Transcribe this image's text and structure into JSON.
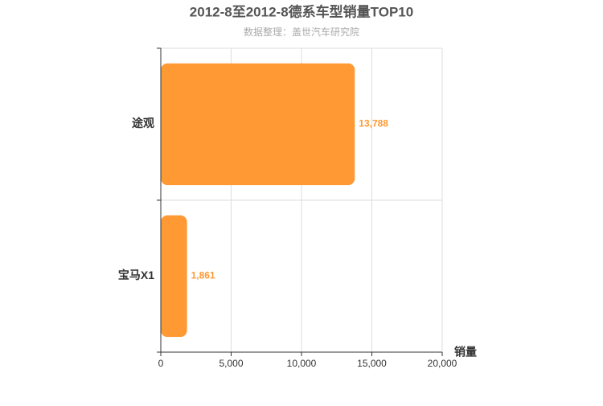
{
  "chart_data": {
    "type": "bar",
    "orientation": "horizontal",
    "title": "2012-8至2012-8德系车型销量TOP10",
    "subtitle": "数据整理：盖世汽车研究院",
    "x_label": "销量",
    "categories": [
      "途观",
      "宝马X1"
    ],
    "values": [
      13788,
      1861
    ],
    "value_labels": [
      "13,788",
      "1,861"
    ],
    "color": "#ff9933",
    "xlim": [
      0,
      20000
    ],
    "xticks": [
      0,
      {
        "value": 5000,
        "label": "5,000"
      },
      {
        "value": 10000,
        "label": "10,000"
      },
      {
        "value": 15000,
        "label": "15,000"
      },
      {
        "value": 20000,
        "label": "20,000"
      }
    ],
    "grid": true
  }
}
